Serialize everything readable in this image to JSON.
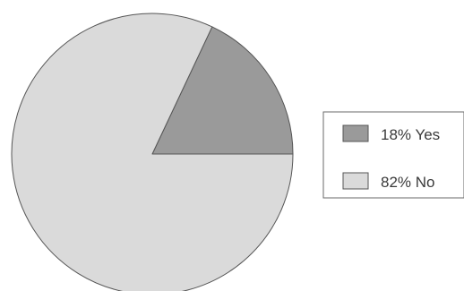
{
  "chart_data": {
    "type": "pie",
    "slices": [
      {
        "label": "18% Yes",
        "value": 18,
        "color": "#9a9a9a"
      },
      {
        "label": "82% No",
        "value": 82,
        "color": "#dadada"
      }
    ],
    "start_angle_deg": 0,
    "direction": "counterclockwise",
    "legend_position": "right",
    "outline_color": "#555555"
  }
}
